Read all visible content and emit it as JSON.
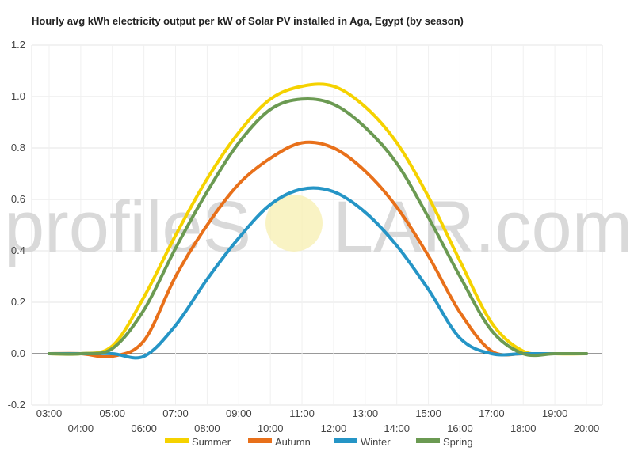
{
  "chart_data": {
    "type": "line",
    "title": "Hourly avg kWh electricity output per kW of Solar PV installed in Aga, Egypt (by season)",
    "xlabel": "",
    "ylabel": "",
    "watermark": {
      "left": "profileS",
      "right": "LAR.com"
    },
    "x": [
      "03:00",
      "04:00",
      "05:00",
      "06:00",
      "07:00",
      "08:00",
      "09:00",
      "10:00",
      "11:00",
      "12:00",
      "13:00",
      "14:00",
      "15:00",
      "16:00",
      "17:00",
      "18:00",
      "19:00",
      "20:00"
    ],
    "ylim": [
      -0.2,
      1.2
    ],
    "yticks": [
      -0.2,
      0.0,
      0.2,
      0.4,
      0.6,
      0.8,
      1.0,
      1.2
    ],
    "grid": true,
    "legend_position": "bottom",
    "series": [
      {
        "name": "Summer",
        "color": "#f5d200",
        "values": [
          0,
          0,
          0.03,
          0.22,
          0.46,
          0.68,
          0.86,
          0.99,
          1.04,
          1.04,
          0.96,
          0.82,
          0.61,
          0.36,
          0.12,
          0.01,
          0,
          0
        ]
      },
      {
        "name": "Autumn",
        "color": "#e8701a",
        "values": [
          0,
          0,
          -0.01,
          0.05,
          0.3,
          0.5,
          0.66,
          0.76,
          0.82,
          0.8,
          0.71,
          0.57,
          0.38,
          0.16,
          0.01,
          0,
          0,
          0
        ]
      },
      {
        "name": "Winter",
        "color": "#2595c6",
        "values": [
          0,
          0,
          0,
          -0.01,
          0.11,
          0.29,
          0.45,
          0.58,
          0.64,
          0.63,
          0.55,
          0.42,
          0.25,
          0.06,
          0,
          0,
          0,
          0
        ]
      },
      {
        "name": "Spring",
        "color": "#6b9a52",
        "values": [
          0,
          0,
          0.02,
          0.17,
          0.41,
          0.63,
          0.82,
          0.95,
          0.99,
          0.97,
          0.88,
          0.74,
          0.53,
          0.3,
          0.09,
          0,
          0,
          0
        ]
      }
    ]
  }
}
